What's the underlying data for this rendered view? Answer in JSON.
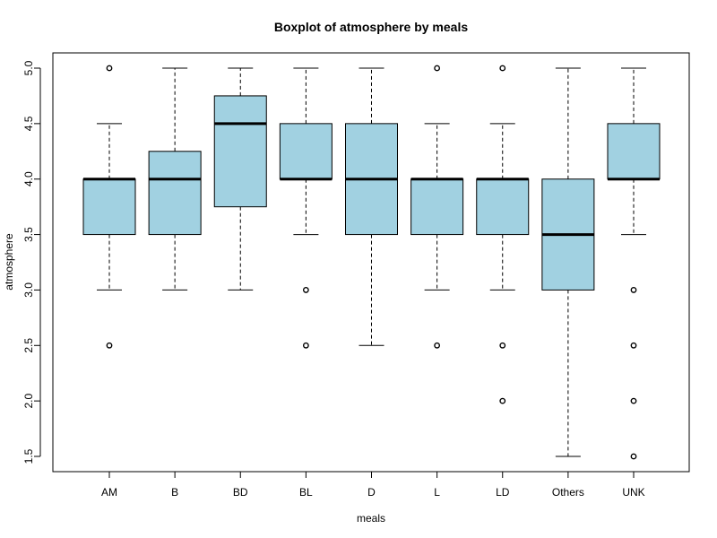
{
  "chart_data": {
    "type": "boxplot",
    "title": "Boxplot of atmosphere by meals",
    "xlabel": "meals",
    "ylabel": "atmosphere",
    "ylim": [
      1.5,
      5.0
    ],
    "yticks": [
      "1.5",
      "2.0",
      "2.5",
      "3.0",
      "3.5",
      "4.0",
      "4.5",
      "5.0"
    ],
    "box_color": "#a1d1e1",
    "grid": false,
    "categories": [
      "AM",
      "B",
      "BD",
      "BL",
      "D",
      "L",
      "LD",
      "Others",
      "UNK"
    ],
    "boxes": [
      {
        "category": "AM",
        "whisker_low": 3.0,
        "q1": 3.5,
        "median": 4.0,
        "q3": 4.0,
        "whisker_high": 4.5,
        "outliers": [
          2.5,
          5.0
        ]
      },
      {
        "category": "B",
        "whisker_low": 3.0,
        "q1": 3.5,
        "median": 4.0,
        "q3": 4.25,
        "whisker_high": 5.0,
        "outliers": []
      },
      {
        "category": "BD",
        "whisker_low": 3.0,
        "q1": 3.75,
        "median": 4.5,
        "q3": 4.75,
        "whisker_high": 5.0,
        "outliers": []
      },
      {
        "category": "BL",
        "whisker_low": 3.5,
        "q1": 4.0,
        "median": 4.0,
        "q3": 4.5,
        "whisker_high": 5.0,
        "outliers": [
          3.0,
          2.5
        ]
      },
      {
        "category": "D",
        "whisker_low": 2.5,
        "q1": 3.5,
        "median": 4.0,
        "q3": 4.5,
        "whisker_high": 5.0,
        "outliers": []
      },
      {
        "category": "L",
        "whisker_low": 3.0,
        "q1": 3.5,
        "median": 4.0,
        "q3": 4.0,
        "whisker_high": 4.5,
        "outliers": [
          2.5,
          5.0
        ]
      },
      {
        "category": "LD",
        "whisker_low": 3.0,
        "q1": 3.5,
        "median": 4.0,
        "q3": 4.0,
        "whisker_high": 4.5,
        "outliers": [
          2.5,
          2.0,
          5.0
        ]
      },
      {
        "category": "Others",
        "whisker_low": 1.5,
        "q1": 3.0,
        "median": 3.5,
        "q3": 4.0,
        "whisker_high": 5.0,
        "outliers": []
      },
      {
        "category": "UNK",
        "whisker_low": 3.5,
        "q1": 4.0,
        "median": 4.0,
        "q3": 4.5,
        "whisker_high": 5.0,
        "outliers": [
          3.0,
          2.5,
          2.0,
          1.5
        ]
      }
    ]
  }
}
